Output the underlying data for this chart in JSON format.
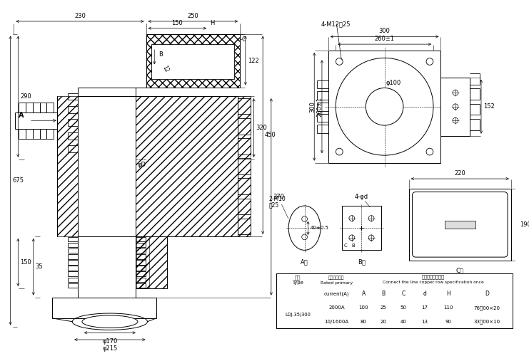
{
  "bg_color": "#ffffff",
  "lc": "#000000",
  "lw": 0.7,
  "fs": 6.0,
  "table_data": {
    "type_label": "LDJ-35/300",
    "row1": [
      "2000A",
      "100",
      "25",
      "50",
      "17",
      "110",
      "76扒00×20"
    ],
    "row2": [
      "10/1600A",
      "80",
      "20",
      "40",
      "13",
      "90",
      "33扒00×10"
    ]
  }
}
